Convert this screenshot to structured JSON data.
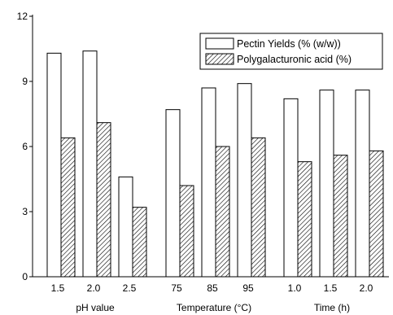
{
  "chart_data": {
    "type": "bar",
    "ylim": [
      0,
      12
    ],
    "yticks": [
      "0",
      "3",
      "6",
      "9",
      "12"
    ],
    "grid": false,
    "legend_position": "top-right",
    "series": [
      {
        "name": "Pectin Yields (% (w/w))",
        "pattern": "empty"
      },
      {
        "name": "Polygalacturonic acid (%)",
        "pattern": "hatched"
      }
    ],
    "groups": [
      {
        "label": "pH value",
        "categories": [
          "1.5",
          "2.0",
          "2.5"
        ],
        "values": [
          [
            10.3,
            10.4,
            4.6
          ],
          [
            6.4,
            7.1,
            3.2
          ]
        ]
      },
      {
        "label": "Temperature (°C)",
        "categories": [
          "75",
          "85",
          "95"
        ],
        "values": [
          [
            7.7,
            8.7,
            8.9
          ],
          [
            4.2,
            6.0,
            6.4
          ]
        ]
      },
      {
        "label": "Time (h)",
        "categories": [
          "1.0",
          "1.5",
          "2.0"
        ],
        "values": [
          [
            8.2,
            8.6,
            8.6
          ],
          [
            5.3,
            5.6,
            5.8
          ]
        ]
      }
    ]
  }
}
